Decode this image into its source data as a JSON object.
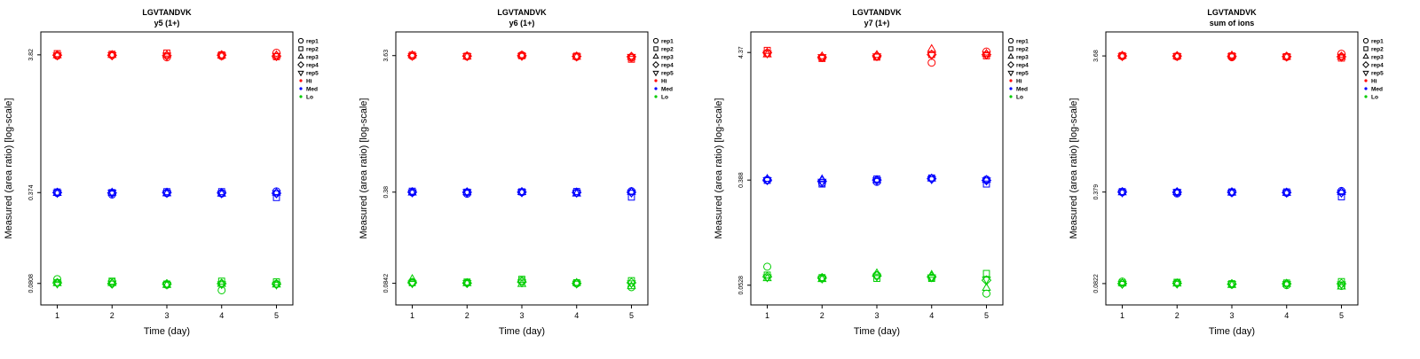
{
  "figure": {
    "ylabel": "Measured (area ratio) [log-scale]",
    "xlabel": "Time (day)",
    "legend": {
      "reps": [
        {
          "label": "rep1",
          "marker": "circle"
        },
        {
          "label": "rep2",
          "marker": "square"
        },
        {
          "label": "rep3",
          "marker": "triangle-up"
        },
        {
          "label": "rep4",
          "marker": "diamond"
        },
        {
          "label": "rep5",
          "marker": "triangle-down"
        }
      ],
      "levels": [
        {
          "label": "Hi",
          "color": "#FF0000"
        },
        {
          "label": "Med",
          "color": "#0000FF"
        },
        {
          "label": "Lo",
          "color": "#00CD00"
        }
      ]
    }
  },
  "chart_data": [
    {
      "type": "scatter",
      "title": "LGVTANDVK",
      "subtitle": "y5 (1+)",
      "xlabel": "Time (day)",
      "ylabel": "Measured (area ratio) [log-scale]",
      "x": [
        1,
        2,
        3,
        4,
        5
      ],
      "xlim": [
        0.7,
        5.3
      ],
      "ylim_log": [
        -1.25,
        0.75
      ],
      "yticks": [
        {
          "value": 3.82,
          "label": "3.82"
        },
        {
          "value": 0.374,
          "label": "0.374"
        },
        {
          "value": 0.0808,
          "label": "0.0808"
        }
      ],
      "rep_markers": [
        "circle",
        "square",
        "triangle-up",
        "diamond",
        "triangle-down"
      ],
      "series": [
        {
          "name": "Hi",
          "color": "#FF0000",
          "reps": [
            [
              3.76,
              3.8,
              3.66,
              3.74,
              3.96
            ],
            [
              3.9,
              3.86,
              3.94,
              3.82,
              3.7
            ],
            [
              3.78,
              3.8,
              3.8,
              3.76,
              3.78
            ],
            [
              3.8,
              3.79,
              3.77,
              3.8,
              3.74
            ],
            [
              3.79,
              3.81,
              3.79,
              3.78,
              3.77
            ]
          ]
        },
        {
          "name": "Med",
          "color": "#0000FF",
          "reps": [
            [
              0.372,
              0.362,
              0.37,
              0.368,
              0.382
            ],
            [
              0.378,
              0.374,
              0.38,
              0.38,
              0.344
            ],
            [
              0.37,
              0.373,
              0.368,
              0.366,
              0.372
            ],
            [
              0.374,
              0.372,
              0.374,
              0.372,
              0.37
            ],
            [
              0.373,
              0.375,
              0.372,
              0.37,
              0.371
            ]
          ]
        },
        {
          "name": "Lo",
          "color": "#00CD00",
          "reps": [
            [
              0.087,
              0.083,
              0.079,
              0.072,
              0.08
            ],
            [
              0.082,
              0.084,
              0.08,
              0.084,
              0.083
            ],
            [
              0.081,
              0.081,
              0.0785,
              0.08,
              0.079
            ],
            [
              0.0815,
              0.0805,
              0.08,
              0.0805,
              0.08
            ],
            [
              0.0808,
              0.081,
              0.0795,
              0.08,
              0.0795
            ]
          ]
        }
      ]
    },
    {
      "type": "scatter",
      "title": "LGVTANDVK",
      "subtitle": "y6 (1+)",
      "xlabel": "Time (day)",
      "ylabel": "Measured (area ratio) [log-scale]",
      "x": [
        1,
        2,
        3,
        4,
        5
      ],
      "xlim": [
        0.7,
        5.3
      ],
      "ylim_log": [
        -1.23,
        0.73
      ],
      "yticks": [
        {
          "value": 3.63,
          "label": "3.63"
        },
        {
          "value": 0.38,
          "label": "0.38"
        },
        {
          "value": 0.0842,
          "label": "0.0842"
        }
      ],
      "rep_markers": [
        "circle",
        "square",
        "triangle-up",
        "diamond",
        "triangle-down"
      ],
      "series": [
        {
          "name": "Hi",
          "color": "#FF0000",
          "reps": [
            [
              3.6,
              3.58,
              3.66,
              3.56,
              3.5
            ],
            [
              3.66,
              3.6,
              3.62,
              3.6,
              3.42
            ],
            [
              3.64,
              3.56,
              3.64,
              3.55,
              3.55
            ],
            [
              3.63,
              3.6,
              3.62,
              3.58,
              3.56
            ],
            [
              3.62,
              3.61,
              3.63,
              3.59,
              3.57
            ]
          ]
        },
        {
          "name": "Med",
          "color": "#0000FF",
          "reps": [
            [
              0.378,
              0.37,
              0.38,
              0.376,
              0.386
            ],
            [
              0.386,
              0.38,
              0.382,
              0.384,
              0.35
            ],
            [
              0.376,
              0.378,
              0.379,
              0.37,
              0.38
            ],
            [
              0.38,
              0.379,
              0.38,
              0.378,
              0.379
            ],
            [
              0.379,
              0.381,
              0.381,
              0.377,
              0.378
            ]
          ]
        },
        {
          "name": "Lo",
          "color": "#00CD00",
          "reps": [
            [
              0.086,
              0.085,
              0.088,
              0.084,
              0.079
            ],
            [
              0.085,
              0.086,
              0.09,
              0.085,
              0.088
            ],
            [
              0.09,
              0.084,
              0.083,
              0.0845,
              0.08
            ],
            [
              0.085,
              0.0845,
              0.086,
              0.0842,
              0.085
            ],
            [
              0.0845,
              0.0848,
              0.0855,
              0.084,
              0.0845
            ]
          ]
        }
      ]
    },
    {
      "type": "scatter",
      "title": "LGVTANDVK",
      "subtitle": "y7 (1+)",
      "xlabel": "Time (day)",
      "ylabel": "Measured (area ratio) [log-scale]",
      "x": [
        1,
        2,
        3,
        4,
        5
      ],
      "xlim": [
        0.7,
        5.3
      ],
      "ylim_log": [
        -1.44,
        0.81
      ],
      "yticks": [
        {
          "value": 4.37,
          "label": "4.37"
        },
        {
          "value": 0.388,
          "label": "0.388"
        },
        {
          "value": 0.0528,
          "label": "0.0528"
        }
      ],
      "rep_markers": [
        "circle",
        "square",
        "triangle-up",
        "diamond",
        "triangle-down"
      ],
      "series": [
        {
          "name": "Hi",
          "color": "#FF0000",
          "reps": [
            [
              4.3,
              3.95,
              4.05,
              3.6,
              4.45
            ],
            [
              4.55,
              3.9,
              4.0,
              4.2,
              4.1
            ],
            [
              4.2,
              4.05,
              4.15,
              4.65,
              4.25
            ],
            [
              4.35,
              4.0,
              4.1,
              4.2,
              4.2
            ],
            [
              4.3,
              4.02,
              4.08,
              4.18,
              4.22
            ]
          ]
        },
        {
          "name": "Med",
          "color": "#0000FF",
          "reps": [
            [
              0.39,
              0.368,
              0.375,
              0.4,
              0.392
            ],
            [
              0.386,
              0.36,
              0.396,
              0.404,
              0.36
            ],
            [
              0.396,
              0.392,
              0.386,
              0.398,
              0.388
            ],
            [
              0.388,
              0.38,
              0.388,
              0.398,
              0.386
            ],
            [
              0.389,
              0.378,
              0.387,
              0.396,
              0.387
            ]
          ]
        },
        {
          "name": "Lo",
          "color": "#00CD00",
          "reps": [
            [
              0.075,
              0.06,
              0.064,
              0.061,
              0.045
            ],
            [
              0.064,
              0.061,
              0.06,
              0.06,
              0.066
            ],
            [
              0.06,
              0.059,
              0.066,
              0.064,
              0.05
            ],
            [
              0.062,
              0.0605,
              0.063,
              0.062,
              0.058
            ],
            [
              0.0615,
              0.06,
              0.0625,
              0.0615,
              0.059
            ]
          ]
        }
      ]
    },
    {
      "type": "scatter",
      "title": "LGVTANDVK",
      "subtitle": "sum of ions",
      "xlabel": "Time (day)",
      "ylabel": "Measured (area ratio) [log-scale]",
      "x": [
        1,
        2,
        3,
        4,
        5
      ],
      "xlim": [
        0.7,
        5.3
      ],
      "ylim_log": [
        -1.24,
        0.74
      ],
      "yticks": [
        {
          "value": 3.68,
          "label": "3.68"
        },
        {
          "value": 0.379,
          "label": "0.379"
        },
        {
          "value": 0.0822,
          "label": "0.0822"
        }
      ],
      "rep_markers": [
        "circle",
        "square",
        "triangle-up",
        "diamond",
        "triangle-down"
      ],
      "series": [
        {
          "name": "Hi",
          "color": "#FF0000",
          "reps": [
            [
              3.66,
              3.64,
              3.6,
              3.62,
              3.82
            ],
            [
              3.7,
              3.66,
              3.68,
              3.64,
              3.55
            ],
            [
              3.68,
              3.66,
              3.7,
              3.62,
              3.62
            ],
            [
              3.68,
              3.67,
              3.66,
              3.64,
              3.63
            ],
            [
              3.67,
              3.68,
              3.67,
              3.65,
              3.64
            ]
          ]
        },
        {
          "name": "Med",
          "color": "#0000FF",
          "reps": [
            [
              0.378,
              0.37,
              0.376,
              0.374,
              0.386
            ],
            [
              0.382,
              0.378,
              0.38,
              0.38,
              0.35
            ],
            [
              0.376,
              0.377,
              0.374,
              0.372,
              0.378
            ],
            [
              0.379,
              0.378,
              0.378,
              0.376,
              0.377
            ],
            [
              0.378,
              0.38,
              0.377,
              0.375,
              0.376
            ]
          ]
        },
        {
          "name": "Lo",
          "color": "#00CD00",
          "reps": [
            [
              0.085,
              0.083,
              0.081,
              0.08,
              0.079
            ],
            [
              0.083,
              0.084,
              0.082,
              0.083,
              0.085
            ],
            [
              0.0825,
              0.082,
              0.08,
              0.0815,
              0.078
            ],
            [
              0.0822,
              0.0825,
              0.0815,
              0.082,
              0.082
            ],
            [
              0.082,
              0.0822,
              0.0818,
              0.0818,
              0.0815
            ]
          ]
        }
      ]
    }
  ]
}
